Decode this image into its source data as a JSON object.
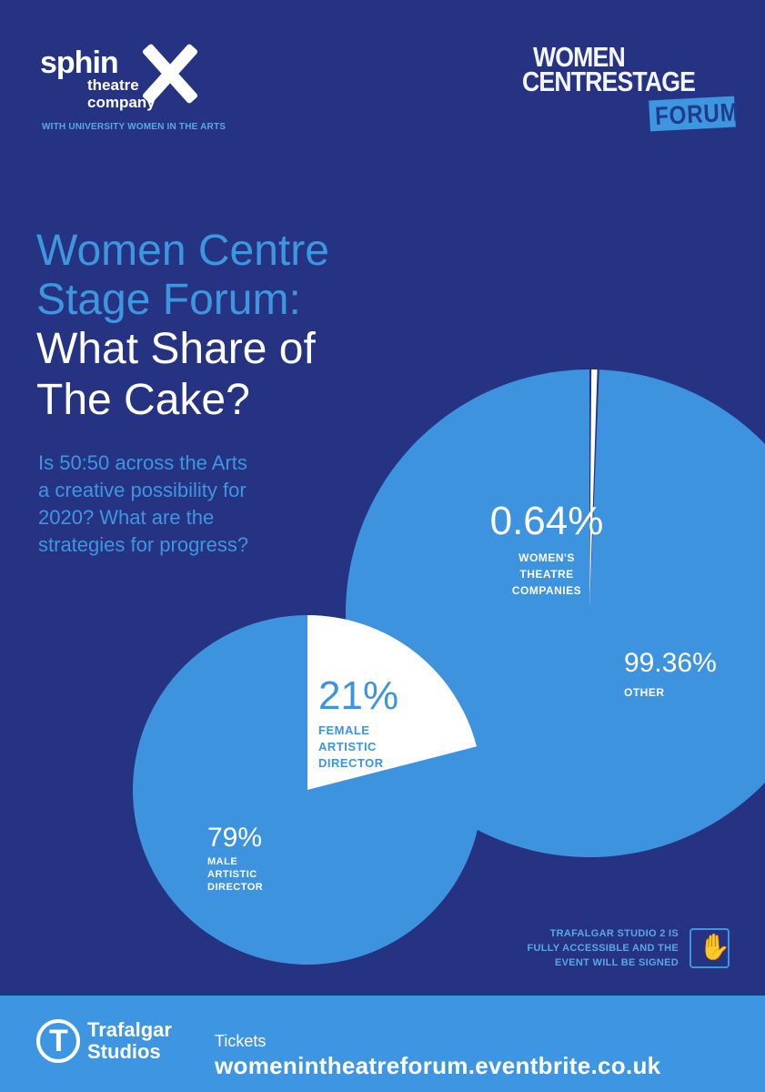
{
  "logo_left": {
    "word": "sphin",
    "sub_line1": "theatre",
    "sub_line2": "company",
    "with_line": "WITH UNIVERSITY WOMEN IN THE ARTS"
  },
  "logo_right": {
    "line1": "WOMEN",
    "line2": "CENTRESTAGE",
    "tag": "FORUM"
  },
  "headline": {
    "blue_line1": "Women Centre",
    "blue_line2": "Stage Forum:",
    "white_line1": "What Share of",
    "white_line2": "The Cake?"
  },
  "subheading": {
    "line1": "Is 50:50 across the Arts",
    "line2": "a creative possibility for",
    "line3": "2020? What are the",
    "line4": "strategies for progress?"
  },
  "chart_data": [
    {
      "type": "pie",
      "slices": [
        {
          "value_label": "0.64%",
          "name_lines": [
            "WOMEN'S",
            "THEATRE",
            "COMPANIES"
          ],
          "value": 0.64
        },
        {
          "value_label": "99.36%",
          "name_lines": [
            "OTHER"
          ],
          "value": 99.36
        }
      ]
    },
    {
      "type": "pie",
      "slices": [
        {
          "value_label": "21%",
          "name_lines": [
            "FEMALE",
            "ARTISTIC",
            "DIRECTOR"
          ],
          "value": 21
        },
        {
          "value_label": "79%",
          "name_lines": [
            "MALE",
            "ARTISTIC",
            "DIRECTOR"
          ],
          "value": 79
        }
      ]
    }
  ],
  "colors": {
    "background": "#263382",
    "accent_blue": "#3f96e0",
    "slice_light": "#ffffff",
    "pie_fill": "#3e93df"
  },
  "accessibility": {
    "line1": "TRAFALGAR STUDIO 2 IS",
    "line2": "FULLY ACCESSIBLE AND THE",
    "line3": "EVENT WILL BE SIGNED",
    "icon": "sign-language-icon"
  },
  "footer": {
    "venue_line1": "Trafalgar",
    "venue_line2": "Studios",
    "venue_icon": "T",
    "tickets_label": "Tickets",
    "tickets_url": "womenintheatreforum.eventbrite.co.uk"
  }
}
